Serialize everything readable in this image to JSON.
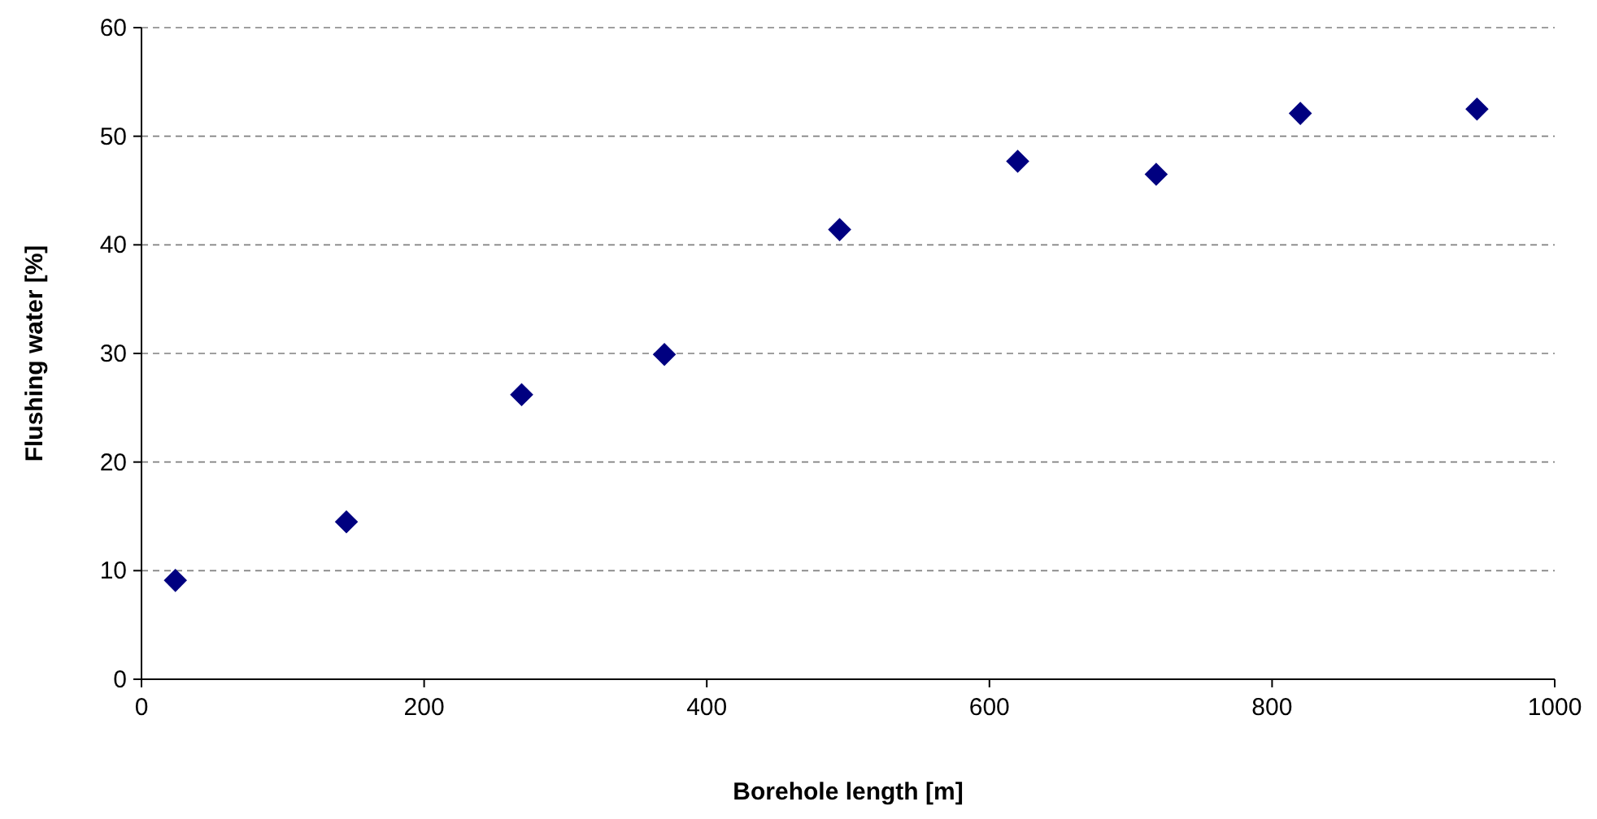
{
  "chart_data": {
    "type": "scatter",
    "xlabel": "Borehole length [m]",
    "ylabel": "Flushing water [%]",
    "x": [
      24,
      145,
      269,
      370,
      494,
      620,
      718,
      820,
      945
    ],
    "values": [
      9.1,
      14.5,
      26.2,
      29.9,
      41.4,
      47.7,
      46.5,
      52.1,
      52.5
    ],
    "color": "#000080",
    "marker": "diamond",
    "xlim": [
      0,
      1000
    ],
    "xticks": [
      0,
      200,
      400,
      600,
      800,
      1000
    ],
    "ylim": [
      0,
      60
    ],
    "yticks": [
      0,
      10,
      20,
      30,
      40,
      50,
      60
    ],
    "grid": "y"
  }
}
